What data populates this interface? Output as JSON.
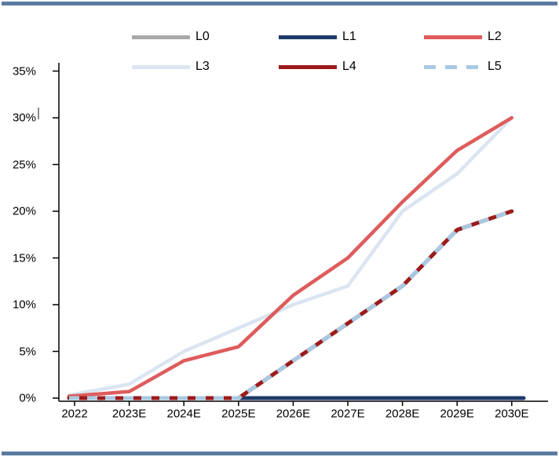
{
  "window": {
    "background": "#ffffff",
    "border_color": "#5b7ba0"
  },
  "chart_data": {
    "type": "line",
    "title": "",
    "legend_position": "top",
    "grid": false,
    "categories": [
      "2022",
      "2023E",
      "2024E",
      "2025E",
      "2026E",
      "2027E",
      "2028E",
      "2029E",
      "2030E"
    ],
    "series": [
      {
        "name": "L0",
        "color": "#a9a9a9",
        "line_style": "solid",
        "values": [
          0,
          0,
          0,
          0,
          0,
          0,
          0,
          0,
          0
        ]
      },
      {
        "name": "L1",
        "color": "#1e3a66",
        "line_style": "solid",
        "values": [
          0,
          0,
          0,
          0,
          0,
          0,
          0,
          0,
          0
        ]
      },
      {
        "name": "L2",
        "color": "#de5c5c",
        "line_style": "solid",
        "values": [
          0.2,
          0.7,
          4,
          5.5,
          11,
          15,
          21,
          26.5,
          30
        ]
      },
      {
        "name": "L3",
        "color": "#dbe5f1",
        "line_style": "solid",
        "values": [
          0.3,
          1.5,
          5,
          7.5,
          10,
          12,
          20,
          24,
          30
        ]
      },
      {
        "name": "L4",
        "color": "#9c1b1b",
        "line_style": "solid",
        "values": [
          0,
          0,
          0,
          0,
          4,
          8,
          12,
          18,
          20
        ]
      },
      {
        "name": "L5",
        "color": "#a9c9e2",
        "line_style": "dashed",
        "values": [
          0,
          0,
          0,
          0,
          4,
          8,
          12,
          18,
          20
        ]
      }
    ],
    "yticks": [
      "0%",
      "5%",
      "10%",
      "15%",
      "20%",
      "25%",
      "30%",
      "35%"
    ],
    "ylim": [
      0,
      35
    ],
    "artifacts": {
      "text_cursor_near": "30%"
    }
  }
}
